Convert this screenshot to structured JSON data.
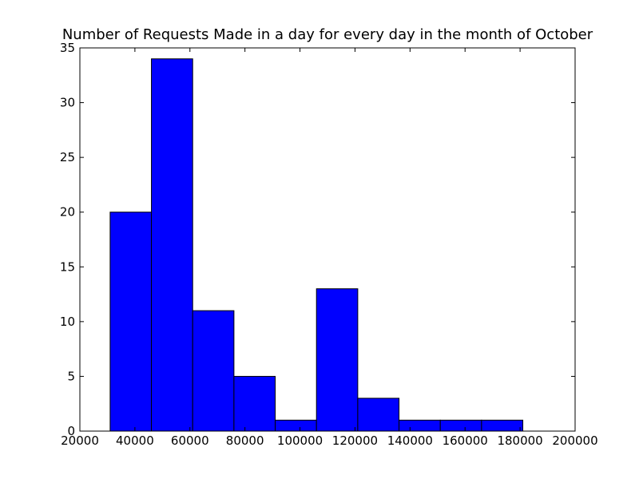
{
  "chart_data": {
    "type": "bar",
    "title": "Number of Requests Made in a day for every day in the month of October",
    "xlabel": "",
    "ylabel": "",
    "xlim": [
      20000,
      200000
    ],
    "ylim": [
      0,
      35
    ],
    "grid": false,
    "bar_color": "#0000ff",
    "edge_color": "#000000",
    "bins": [
      {
        "x0": 31000,
        "x1": 46000,
        "count": 20
      },
      {
        "x0": 46000,
        "x1": 61000,
        "count": 34
      },
      {
        "x0": 61000,
        "x1": 76000,
        "count": 11
      },
      {
        "x0": 76000,
        "x1": 91000,
        "count": 5
      },
      {
        "x0": 91000,
        "x1": 106000,
        "count": 1
      },
      {
        "x0": 106000,
        "x1": 121000,
        "count": 13
      },
      {
        "x0": 121000,
        "x1": 136000,
        "count": 3
      },
      {
        "x0": 136000,
        "x1": 151000,
        "count": 1
      },
      {
        "x0": 151000,
        "x1": 166000,
        "count": 1
      },
      {
        "x0": 166000,
        "x1": 181000,
        "count": 1
      }
    ],
    "x_ticks": [
      20000,
      40000,
      60000,
      80000,
      100000,
      120000,
      140000,
      160000,
      180000,
      200000
    ],
    "y_ticks": [
      0,
      5,
      10,
      15,
      20,
      25,
      30,
      35
    ]
  }
}
